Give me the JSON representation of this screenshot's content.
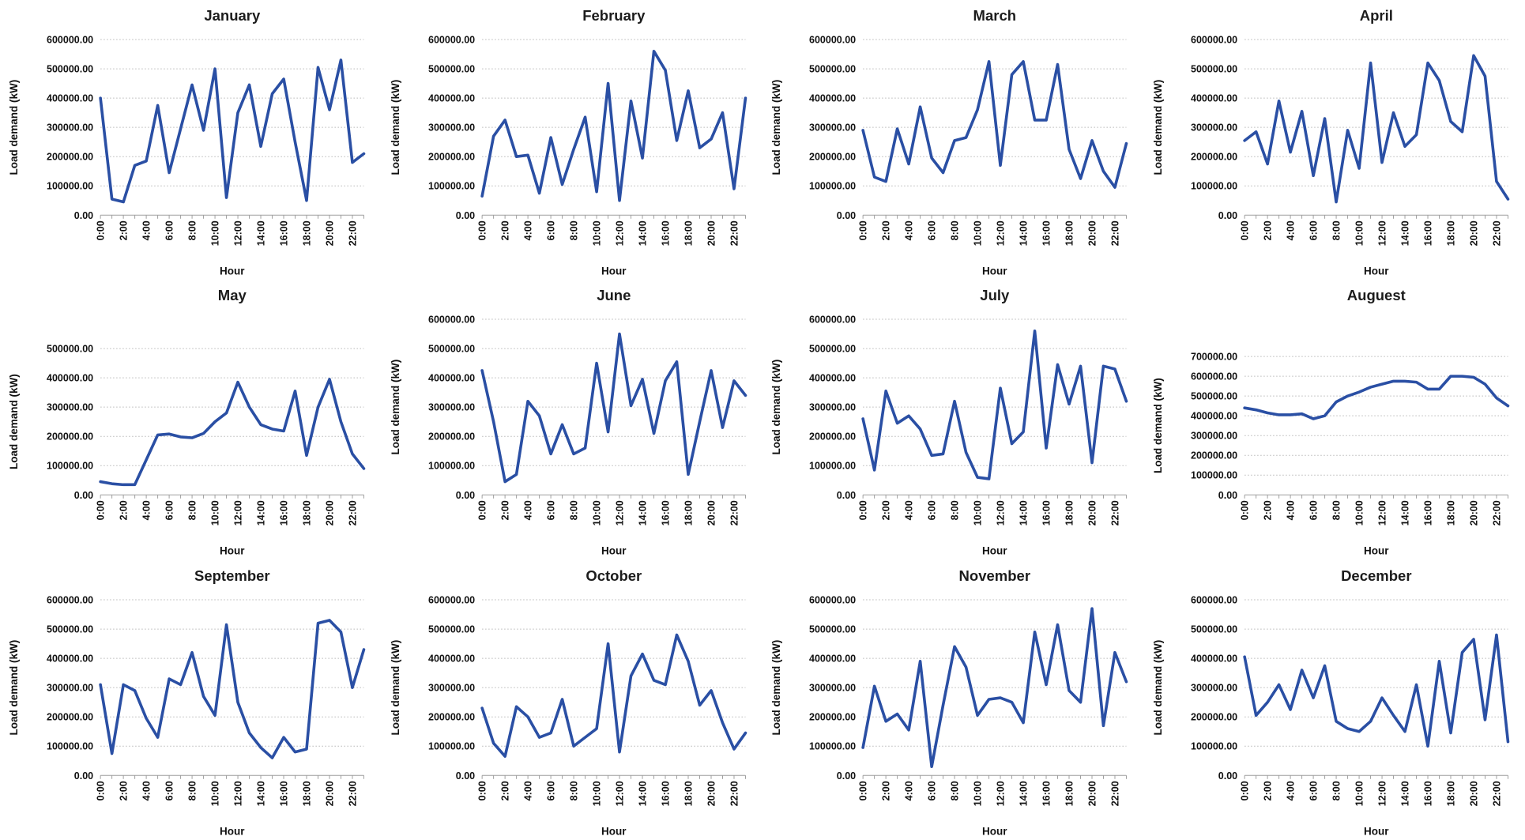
{
  "style": {
    "line_color": "#2a4fa4",
    "grid_color": "#b8b8b8",
    "axis_color": "#9f9f9f",
    "text_color": "#111111",
    "background": "#ffffff"
  },
  "axes": {
    "xlabel": "Hour",
    "ylabel": "Load demand (kW)",
    "x_tick_labels": [
      "0:00",
      "2:00",
      "4:00",
      "6:00",
      "8:00",
      "10:00",
      "12:00",
      "14:00",
      "16:00",
      "18:00",
      "20:00",
      "22:00"
    ],
    "x_points_per_chart": 24,
    "ytick_step": 100000,
    "grid": true
  },
  "chart_data": [
    {
      "type": "line",
      "title": "January",
      "xlabel": "Hour",
      "ylabel": "Load demand (kW)",
      "ylim": [
        0,
        600000
      ],
      "y_tick_labels": [
        "0.00",
        "100000.00",
        "200000.00",
        "300000.00",
        "400000.00",
        "500000.00",
        "600000.00"
      ],
      "values": [
        400000,
        55000,
        45000,
        170000,
        185000,
        375000,
        145000,
        295000,
        445000,
        290000,
        500000,
        60000,
        350000,
        445000,
        235000,
        415000,
        465000,
        250000,
        50000,
        505000,
        360000,
        530000,
        180000,
        210000
      ]
    },
    {
      "type": "line",
      "title": "February",
      "xlabel": "Hour",
      "ylabel": "Load demand (kW)",
      "ylim": [
        0,
        600000
      ],
      "y_tick_labels": [
        "0.00",
        "100000.00",
        "200000.00",
        "300000.00",
        "400000.00",
        "500000.00",
        "600000.00"
      ],
      "values": [
        65000,
        270000,
        325000,
        200000,
        205000,
        75000,
        265000,
        105000,
        225000,
        335000,
        80000,
        450000,
        50000,
        390000,
        195000,
        560000,
        495000,
        255000,
        425000,
        230000,
        260000,
        350000,
        90000,
        400000
      ]
    },
    {
      "type": "line",
      "title": "March",
      "xlabel": "Hour",
      "ylabel": "Load demand (kW)",
      "ylim": [
        0,
        600000
      ],
      "y_tick_labels": [
        "0.00",
        "100000.00",
        "200000.00",
        "300000.00",
        "400000.00",
        "500000.00",
        "600000.00"
      ],
      "values": [
        290000,
        130000,
        115000,
        295000,
        175000,
        370000,
        195000,
        145000,
        255000,
        265000,
        360000,
        525000,
        170000,
        480000,
        525000,
        325000,
        325000,
        515000,
        225000,
        125000,
        255000,
        150000,
        95000,
        245000
      ]
    },
    {
      "type": "line",
      "title": "April",
      "xlabel": "Hour",
      "ylabel": "Load demand (kW)",
      "ylim": [
        0,
        600000
      ],
      "y_tick_labels": [
        "0.00",
        "100000.00",
        "200000.00",
        "300000.00",
        "400000.00",
        "500000.00",
        "600000.00"
      ],
      "values": [
        255000,
        285000,
        175000,
        390000,
        215000,
        355000,
        135000,
        330000,
        45000,
        290000,
        160000,
        520000,
        180000,
        350000,
        235000,
        275000,
        520000,
        460000,
        320000,
        285000,
        545000,
        475000,
        115000,
        55000
      ]
    },
    {
      "type": "line",
      "title": "May",
      "xlabel": "Hour",
      "ylabel": "Load demand (kW)",
      "ylim": [
        0,
        500000
      ],
      "y_tick_labels": [
        "0.00",
        "100000.00",
        "200000.00",
        "300000.00",
        "400000.00",
        "500000.00"
      ],
      "values": [
        45000,
        38000,
        35000,
        35000,
        120000,
        205000,
        208000,
        198000,
        195000,
        210000,
        250000,
        280000,
        385000,
        300000,
        240000,
        225000,
        218000,
        355000,
        135000,
        300000,
        395000,
        250000,
        140000,
        90000
      ]
    },
    {
      "type": "line",
      "title": "June",
      "xlabel": "Hour",
      "ylabel": "Load demand (kW)",
      "ylim": [
        0,
        600000
      ],
      "y_tick_labels": [
        "0.00",
        "100000.00",
        "200000.00",
        "300000.00",
        "400000.00",
        "500000.00",
        "600000.00"
      ],
      "values": [
        425000,
        250000,
        45000,
        70000,
        320000,
        270000,
        140000,
        240000,
        140000,
        160000,
        450000,
        215000,
        550000,
        305000,
        395000,
        210000,
        390000,
        455000,
        70000,
        250000,
        425000,
        230000,
        390000,
        340000
      ]
    },
    {
      "type": "line",
      "title": "July",
      "xlabel": "Hour",
      "ylabel": "Load demand (kW)",
      "ylim": [
        0,
        600000
      ],
      "y_tick_labels": [
        "0.00",
        "100000.00",
        "200000.00",
        "300000.00",
        "400000.00",
        "500000.00",
        "600000.00"
      ],
      "values": [
        260000,
        85000,
        355000,
        245000,
        270000,
        225000,
        135000,
        140000,
        320000,
        145000,
        60000,
        55000,
        365000,
        175000,
        215000,
        560000,
        160000,
        445000,
        310000,
        440000,
        110000,
        440000,
        430000,
        320000
      ]
    },
    {
      "type": "line",
      "title": "Auguest",
      "xlabel": "Hour",
      "ylabel": "Load demand (kW)",
      "ylim": [
        0,
        700000
      ],
      "y_tick_labels": [
        "0.00",
        "100000.00",
        "200000.00",
        "300000.00",
        "400000.00",
        "500000.00",
        "600000.00",
        "700000.00"
      ],
      "values": [
        440000,
        430000,
        415000,
        405000,
        405000,
        410000,
        385000,
        400000,
        470000,
        500000,
        520000,
        545000,
        560000,
        575000,
        575000,
        570000,
        535000,
        535000,
        600000,
        600000,
        595000,
        560000,
        490000,
        450000
      ]
    },
    {
      "type": "line",
      "title": "September",
      "xlabel": "Hour",
      "ylabel": "Load demand (kW)",
      "ylim": [
        0,
        600000
      ],
      "y_tick_labels": [
        "0.00",
        "100000.00",
        "200000.00",
        "300000.00",
        "400000.00",
        "500000.00",
        "600000.00"
      ],
      "values": [
        310000,
        75000,
        310000,
        290000,
        195000,
        130000,
        330000,
        310000,
        420000,
        270000,
        205000,
        515000,
        250000,
        145000,
        95000,
        60000,
        130000,
        80000,
        90000,
        520000,
        530000,
        490000,
        300000,
        430000
      ]
    },
    {
      "type": "line",
      "title": "October",
      "xlabel": "Hour",
      "ylabel": "Load demand (kW)",
      "ylim": [
        0,
        600000
      ],
      "y_tick_labels": [
        "0.00",
        "100000.00",
        "200000.00",
        "300000.00",
        "400000.00",
        "500000.00",
        "600000.00"
      ],
      "values": [
        230000,
        110000,
        65000,
        235000,
        200000,
        130000,
        145000,
        260000,
        100000,
        130000,
        160000,
        450000,
        80000,
        340000,
        415000,
        325000,
        310000,
        480000,
        390000,
        240000,
        290000,
        180000,
        90000,
        145000
      ]
    },
    {
      "type": "line",
      "title": "November",
      "xlabel": "Hour",
      "ylabel": "Load demand (kW)",
      "ylim": [
        0,
        600000
      ],
      "y_tick_labels": [
        "0.00",
        "100000.00",
        "200000.00",
        "300000.00",
        "400000.00",
        "500000.00",
        "600000.00"
      ],
      "values": [
        95000,
        305000,
        185000,
        210000,
        155000,
        390000,
        30000,
        240000,
        440000,
        370000,
        205000,
        260000,
        265000,
        250000,
        180000,
        490000,
        310000,
        515000,
        290000,
        250000,
        570000,
        170000,
        420000,
        320000
      ]
    },
    {
      "type": "line",
      "title": "December",
      "xlabel": "Hour",
      "ylabel": "Load demand (kW)",
      "ylim": [
        0,
        600000
      ],
      "y_tick_labels": [
        "0.00",
        "100000.00",
        "200000.00",
        "300000.00",
        "400000.00",
        "500000.00",
        "600000.00"
      ],
      "values": [
        405000,
        205000,
        250000,
        310000,
        225000,
        360000,
        265000,
        375000,
        185000,
        160000,
        150000,
        185000,
        265000,
        205000,
        150000,
        310000,
        100000,
        390000,
        145000,
        420000,
        465000,
        190000,
        480000,
        115000
      ]
    }
  ]
}
